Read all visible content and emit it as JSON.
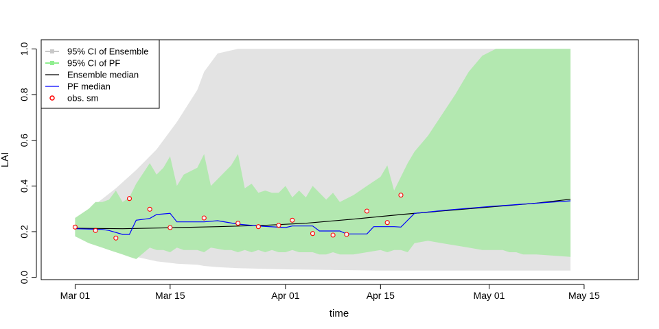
{
  "chart_data": {
    "type": "area",
    "title": "",
    "xlabel": "time",
    "ylabel": "LAI",
    "x_ticks": [
      "Mar 01",
      "Mar 15",
      "Apr 01",
      "Apr 15",
      "May 01",
      "May 15"
    ],
    "x_tick_dates": [
      "2000-03-01",
      "2000-03-15",
      "2000-04-01",
      "2000-04-15",
      "2000-05-01",
      "2000-05-15"
    ],
    "xlim": [
      "2000-02-25",
      "2000-05-23"
    ],
    "y_ticks": [
      "0.0",
      "0.2",
      "0.4",
      "0.6",
      "0.8",
      "1.0"
    ],
    "ylim": [
      -0.01,
      1.04
    ],
    "grid": false,
    "legend_position": "top-left",
    "colors": {
      "ensemble_ci": "#e3e3e3",
      "ensemble_ci_legend": "#c8c8c8",
      "pf_ci": "#b3e8b0",
      "pf_ci_legend": "#90ee90",
      "ensemble_median": "#000000",
      "pf_median": "#0000ff",
      "obs": "#ff0000"
    },
    "legend": [
      {
        "label": "95% CI of Ensemble",
        "kind": "square-line",
        "color_key": "ensemble_ci_legend"
      },
      {
        "label": "95% CI of PF",
        "kind": "square-line",
        "color_key": "pf_ci_legend"
      },
      {
        "label": "Ensemble median",
        "kind": "line",
        "color_key": "ensemble_median"
      },
      {
        "label": "PF median",
        "kind": "line",
        "color_key": "pf_median"
      },
      {
        "label": "obs. sm",
        "kind": "circle",
        "color_key": "obs"
      }
    ],
    "series": [
      {
        "name": "95% CI of Ensemble",
        "kind": "band",
        "x": [
          "2000-03-01",
          "2000-03-04",
          "2000-03-07",
          "2000-03-10",
          "2000-03-13",
          "2000-03-16",
          "2000-03-19",
          "2000-03-20",
          "2000-03-22",
          "2000-03-25",
          "2000-04-01",
          "2000-04-15",
          "2000-05-01",
          "2000-05-13"
        ],
        "upper": [
          0.26,
          0.32,
          0.39,
          0.47,
          0.56,
          0.68,
          0.82,
          0.9,
          0.98,
          1.0,
          1.0,
          1.0,
          1.0,
          1.0
        ],
        "lower": [
          0.18,
          0.14,
          0.11,
          0.09,
          0.07,
          0.06,
          0.055,
          0.05,
          0.045,
          0.04,
          0.035,
          0.03,
          0.03,
          0.03
        ]
      },
      {
        "name": "95% CI of PF",
        "kind": "band",
        "x": [
          "2000-03-01",
          "2000-03-03",
          "2000-03-04",
          "2000-03-05",
          "2000-03-06",
          "2000-03-07",
          "2000-03-08",
          "2000-03-09",
          "2000-03-10",
          "2000-03-12",
          "2000-03-13",
          "2000-03-14",
          "2000-03-15",
          "2000-03-16",
          "2000-03-17",
          "2000-03-19",
          "2000-03-20",
          "2000-03-21",
          "2000-03-23",
          "2000-03-24",
          "2000-03-25",
          "2000-03-26",
          "2000-03-27",
          "2000-03-28",
          "2000-03-29",
          "2000-03-30",
          "2000-03-31",
          "2000-04-01",
          "2000-04-02",
          "2000-04-03",
          "2000-04-04",
          "2000-04-05",
          "2000-04-06",
          "2000-04-07",
          "2000-04-08",
          "2000-04-09",
          "2000-04-11",
          "2000-04-13",
          "2000-04-15",
          "2000-04-16",
          "2000-04-17",
          "2000-04-18",
          "2000-04-19",
          "2000-04-20",
          "2000-04-22",
          "2000-04-24",
          "2000-04-26",
          "2000-04-28",
          "2000-04-30",
          "2000-05-02",
          "2000-05-03",
          "2000-05-04",
          "2000-05-05",
          "2000-05-06",
          "2000-05-08",
          "2000-05-13"
        ],
        "upper": [
          0.26,
          0.3,
          0.33,
          0.33,
          0.34,
          0.38,
          0.33,
          0.35,
          0.41,
          0.5,
          0.45,
          0.48,
          0.53,
          0.4,
          0.45,
          0.48,
          0.54,
          0.4,
          0.46,
          0.49,
          0.54,
          0.39,
          0.41,
          0.37,
          0.38,
          0.37,
          0.37,
          0.4,
          0.35,
          0.38,
          0.35,
          0.4,
          0.37,
          0.34,
          0.37,
          0.33,
          0.36,
          0.4,
          0.44,
          0.49,
          0.38,
          0.44,
          0.5,
          0.55,
          0.62,
          0.71,
          0.8,
          0.9,
          0.97,
          1.0,
          1.0,
          1.0,
          1.0,
          1.0,
          1.0,
          1.0
        ],
        "lower": [
          0.18,
          0.15,
          0.14,
          0.13,
          0.12,
          0.11,
          0.1,
          0.09,
          0.08,
          0.13,
          0.12,
          0.12,
          0.11,
          0.13,
          0.12,
          0.12,
          0.11,
          0.13,
          0.12,
          0.12,
          0.11,
          0.12,
          0.11,
          0.12,
          0.11,
          0.12,
          0.11,
          0.11,
          0.12,
          0.11,
          0.11,
          0.11,
          0.1,
          0.1,
          0.11,
          0.1,
          0.1,
          0.11,
          0.12,
          0.11,
          0.12,
          0.12,
          0.11,
          0.15,
          0.16,
          0.15,
          0.14,
          0.13,
          0.12,
          0.12,
          0.12,
          0.11,
          0.11,
          0.1,
          0.1,
          0.09
        ]
      },
      {
        "name": "Ensemble median",
        "kind": "line",
        "x": [
          "2000-03-01",
          "2000-03-08",
          "2000-03-15",
          "2000-03-22",
          "2000-03-29",
          "2000-04-04",
          "2000-04-11",
          "2000-04-18",
          "2000-04-25",
          "2000-05-02",
          "2000-05-08",
          "2000-05-13"
        ],
        "values": [
          0.215,
          0.213,
          0.217,
          0.222,
          0.228,
          0.237,
          0.255,
          0.275,
          0.293,
          0.31,
          0.325,
          0.342
        ]
      },
      {
        "name": "PF median",
        "kind": "line",
        "x": [
          "2000-03-01",
          "2000-03-05",
          "2000-03-06",
          "2000-03-08",
          "2000-03-09",
          "2000-03-10",
          "2000-03-12",
          "2000-03-13",
          "2000-03-15",
          "2000-03-16",
          "2000-03-20",
          "2000-03-22",
          "2000-03-25",
          "2000-03-28",
          "2000-04-01",
          "2000-04-02",
          "2000-04-05",
          "2000-04-06",
          "2000-04-09",
          "2000-04-10",
          "2000-04-11",
          "2000-04-13",
          "2000-04-14",
          "2000-04-17",
          "2000-04-18",
          "2000-04-20",
          "2000-04-25",
          "2000-05-01",
          "2000-05-13"
        ],
        "values": [
          0.213,
          0.21,
          0.205,
          0.188,
          0.188,
          0.25,
          0.258,
          0.275,
          0.28,
          0.243,
          0.243,
          0.248,
          0.233,
          0.225,
          0.218,
          0.225,
          0.225,
          0.203,
          0.203,
          0.19,
          0.19,
          0.19,
          0.222,
          0.222,
          0.22,
          0.28,
          0.295,
          0.31,
          0.335
        ]
      },
      {
        "name": "obs. sm",
        "kind": "points",
        "x": [
          "2000-03-01",
          "2000-03-04",
          "2000-03-07",
          "2000-03-09",
          "2000-03-12",
          "2000-03-15",
          "2000-03-20",
          "2000-03-25",
          "2000-03-28",
          "2000-03-31",
          "2000-04-02",
          "2000-04-05",
          "2000-04-08",
          "2000-04-10",
          "2000-04-13",
          "2000-04-16",
          "2000-04-18"
        ],
        "values": [
          0.22,
          0.205,
          0.172,
          0.345,
          0.298,
          0.218,
          0.26,
          0.237,
          0.222,
          0.228,
          0.25,
          0.192,
          0.185,
          0.188,
          0.29,
          0.24,
          0.36
        ]
      }
    ]
  }
}
